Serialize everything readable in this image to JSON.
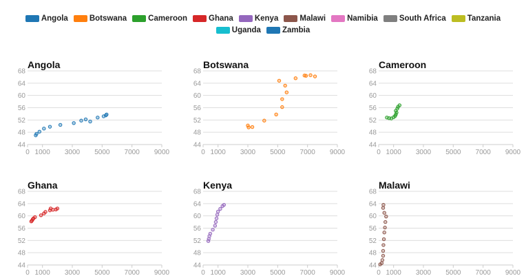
{
  "legend": [
    {
      "label": "Angola",
      "color": "#1f77b4"
    },
    {
      "label": "Botswana",
      "color": "#ff7f0e"
    },
    {
      "label": "Cameroon",
      "color": "#2ca02c"
    },
    {
      "label": "Ghana",
      "color": "#d62728"
    },
    {
      "label": "Kenya",
      "color": "#9467bd"
    },
    {
      "label": "Malawi",
      "color": "#8c564b"
    },
    {
      "label": "Namibia",
      "color": "#e377c2"
    },
    {
      "label": "South Africa",
      "color": "#7f7f7f"
    },
    {
      "label": "Tanzania",
      "color": "#bcbd22"
    },
    {
      "label": "Uganda",
      "color": "#17becf"
    },
    {
      "label": "Zambia",
      "color": "#1f77b4"
    }
  ],
  "chart_data": [
    {
      "type": "scatter",
      "title": "Angola",
      "color": "#1f77b4",
      "xlim": [
        0,
        9000
      ],
      "ylim": [
        44,
        68
      ],
      "xticks": [
        "0",
        "1000",
        "3000",
        "5000",
        "7000",
        "9000"
      ],
      "yticks": [
        "44",
        "48",
        "52",
        "56",
        "60",
        "64",
        "68"
      ],
      "points": [
        [
          550,
          47.0
        ],
        [
          600,
          47.5
        ],
        [
          800,
          48.2
        ],
        [
          1100,
          49.2
        ],
        [
          1500,
          49.8
        ],
        [
          2200,
          50.4
        ],
        [
          3100,
          51.0
        ],
        [
          3600,
          51.8
        ],
        [
          3900,
          52.2
        ],
        [
          4200,
          51.5
        ],
        [
          4700,
          52.8
        ],
        [
          5100,
          53.2
        ],
        [
          5300,
          53.8
        ],
        [
          5250,
          53.5
        ]
      ]
    },
    {
      "type": "scatter",
      "title": "Botswana",
      "color": "#ff7f0e",
      "xlim": [
        0,
        9000
      ],
      "ylim": [
        44,
        68
      ],
      "xticks": [
        "0",
        "1000",
        "3000",
        "5000",
        "7000",
        "9000"
      ],
      "yticks": [
        "44",
        "48",
        "52",
        "56",
        "60",
        "64",
        "68"
      ],
      "points": [
        [
          3000,
          50.2
        ],
        [
          3050,
          49.6
        ],
        [
          3300,
          49.7
        ],
        [
          4100,
          51.8
        ],
        [
          4900,
          53.8
        ],
        [
          5300,
          56.2
        ],
        [
          5300,
          58.8
        ],
        [
          5600,
          61.0
        ],
        [
          5500,
          63.2
        ],
        [
          5100,
          64.8
        ],
        [
          6200,
          65.6
        ],
        [
          6800,
          66.5
        ],
        [
          6900,
          66.4
        ],
        [
          7200,
          66.6
        ],
        [
          7500,
          66.2
        ]
      ]
    },
    {
      "type": "scatter",
      "title": "Cameroon",
      "color": "#2ca02c",
      "xlim": [
        0,
        9000
      ],
      "ylim": [
        44,
        68
      ],
      "xticks": [
        "0",
        "1000",
        "3000",
        "5000",
        "7000",
        "9000"
      ],
      "yticks": [
        "44",
        "48",
        "52",
        "56",
        "60",
        "64",
        "68"
      ],
      "points": [
        [
          550,
          52.8
        ],
        [
          700,
          52.6
        ],
        [
          850,
          52.5
        ],
        [
          1000,
          52.9
        ],
        [
          1100,
          53.3
        ],
        [
          1150,
          53.8
        ],
        [
          1200,
          54.4
        ],
        [
          1150,
          55.0
        ],
        [
          1250,
          55.7
        ],
        [
          1300,
          56.3
        ],
        [
          1400,
          56.8
        ]
      ]
    },
    {
      "type": "scatter",
      "title": "Ghana",
      "color": "#d62728",
      "xlim": [
        0,
        9000
      ],
      "ylim": [
        44,
        68
      ],
      "xticks": [
        "0",
        "1000",
        "3000",
        "5000",
        "7000",
        "9000"
      ],
      "yticks": [
        "44",
        "48",
        "52",
        "56",
        "60",
        "64",
        "68"
      ],
      "points": [
        [
          250,
          58.2
        ],
        [
          300,
          58.5
        ],
        [
          350,
          58.9
        ],
        [
          400,
          59.2
        ],
        [
          500,
          59.6
        ],
        [
          900,
          60.2
        ],
        [
          1100,
          60.8
        ],
        [
          1200,
          61.3
        ],
        [
          1500,
          61.8
        ],
        [
          1550,
          62.4
        ],
        [
          1700,
          62.0
        ],
        [
          1900,
          62.1
        ],
        [
          2000,
          62.4
        ]
      ]
    },
    {
      "type": "scatter",
      "title": "Kenya",
      "color": "#9467bd",
      "xlim": [
        0,
        9000
      ],
      "ylim": [
        44,
        68
      ],
      "xticks": [
        "0",
        "1000",
        "3000",
        "5000",
        "7000",
        "9000"
      ],
      "yticks": [
        "44",
        "48",
        "52",
        "56",
        "60",
        "64",
        "68"
      ],
      "points": [
        [
          350,
          51.8
        ],
        [
          380,
          52.5
        ],
        [
          420,
          53.4
        ],
        [
          480,
          54.2
        ],
        [
          650,
          55.5
        ],
        [
          800,
          56.8
        ],
        [
          850,
          58.0
        ],
        [
          900,
          59.2
        ],
        [
          950,
          60.4
        ],
        [
          1000,
          61.4
        ],
        [
          1150,
          62.3
        ],
        [
          1300,
          63.2
        ],
        [
          1400,
          63.6
        ]
      ]
    },
    {
      "type": "scatter",
      "title": "Malawi",
      "color": "#8c564b",
      "xlim": [
        0,
        9000
      ],
      "ylim": [
        44,
        68
      ],
      "xticks": [
        "0",
        "1000",
        "3000",
        "5000",
        "7000",
        "9000"
      ],
      "yticks": [
        "44",
        "48",
        "52",
        "56",
        "60",
        "64",
        "68"
      ],
      "points": [
        [
          100,
          44.2
        ],
        [
          200,
          44.6
        ],
        [
          250,
          45.6
        ],
        [
          300,
          47.0
        ],
        [
          300,
          48.6
        ],
        [
          320,
          50.5
        ],
        [
          350,
          52.4
        ],
        [
          380,
          54.6
        ],
        [
          420,
          56.2
        ],
        [
          450,
          58.0
        ],
        [
          500,
          59.8
        ],
        [
          380,
          61.0
        ],
        [
          300,
          62.6
        ],
        [
          320,
          63.6
        ]
      ]
    }
  ]
}
